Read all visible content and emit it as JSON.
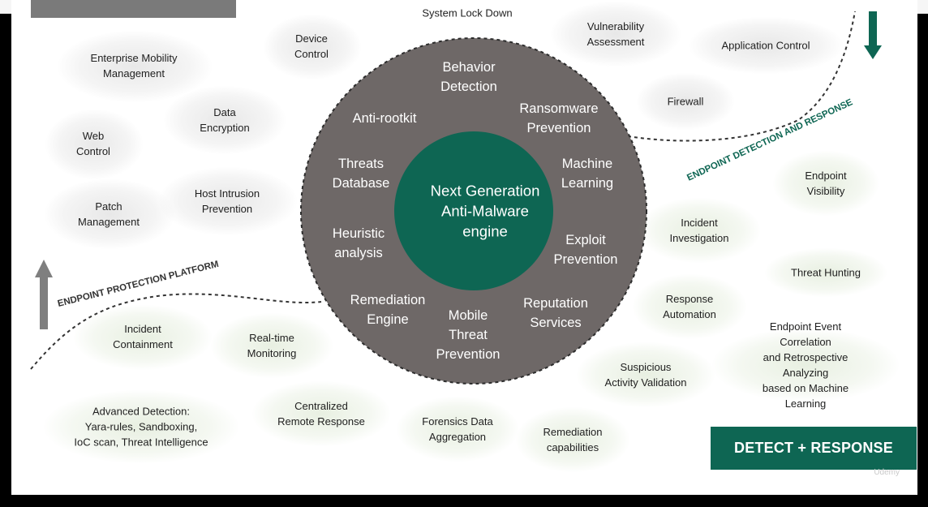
{
  "ring": {
    "items": [
      {
        "label": "Behavior\nDetection"
      },
      {
        "label": "Ransomware\nPrevention"
      },
      {
        "label": "Anti-rootkit"
      },
      {
        "label": "Threats\nDatabase"
      },
      {
        "label": "Machine\nLearning"
      },
      {
        "label": "Heuristic\nanalysis"
      },
      {
        "label": "Exploit\nPrevention"
      },
      {
        "label": "Remediation\nEngine"
      },
      {
        "label": "Mobile\nThreat\nPrevention"
      },
      {
        "label": "Reputation\nServices"
      }
    ],
    "center": "Next Generation\nAnti-Malware\nengine"
  },
  "protection": {
    "arrow_label": "ENDPOINT PROTECTION PLATFORM",
    "items": [
      {
        "label": "System Lock Down"
      },
      {
        "label": "Device\nControl"
      },
      {
        "label": "Enterprise Mobility\nManagement"
      },
      {
        "label": "Data\nEncryption"
      },
      {
        "label": "Web\nControl"
      },
      {
        "label": "Host Intrusion\nPrevention"
      },
      {
        "label": "Patch\nManagement"
      },
      {
        "label": "Vulnerability\nAssessment"
      },
      {
        "label": "Application Control"
      },
      {
        "label": "Firewall"
      }
    ]
  },
  "detection": {
    "arrow_label": "ENDPOINT DETECTION AND RESPONSE",
    "items": [
      {
        "label": "Endpoint\nVisibility"
      },
      {
        "label": "Incident\nInvestigation"
      },
      {
        "label": "Threat Hunting"
      },
      {
        "label": "Response\nAutomation"
      },
      {
        "label": "Endpoint Event Correlation\nand Retrospective Analyzing\nbased on Machine Learning"
      },
      {
        "label": "Suspicious\nActivity Validation"
      },
      {
        "label": "Incident\nContainment"
      },
      {
        "label": "Real-time\nMonitoring"
      },
      {
        "label": "Advanced Detection:\nYara-rules, Sandboxing,\nIoC scan, Threat Intelligence"
      },
      {
        "label": "Centralized\nRemote Response"
      },
      {
        "label": "Forensics Data\nAggregation"
      },
      {
        "label": "Remediation\ncapabilities"
      }
    ]
  },
  "detect_response": "DETECT + RESPONSE",
  "watermark": "Udemy",
  "colors": {
    "ring": "#6e6867",
    "center": "#0e6653",
    "accent_green": "#0e6653",
    "arrow_gray": "#7f7f7f"
  }
}
